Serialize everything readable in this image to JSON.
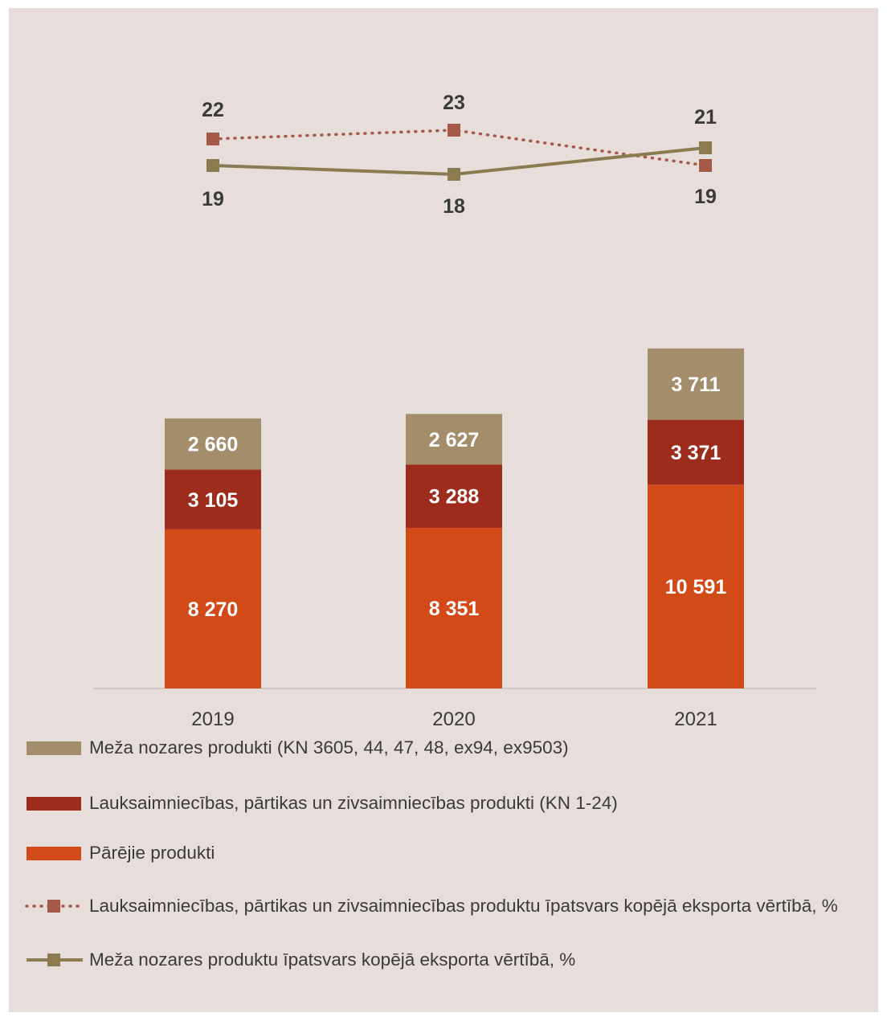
{
  "chart_data": {
    "type": "bar",
    "stacked": true,
    "categories": [
      "2019",
      "2020",
      "2021"
    ],
    "series": [
      {
        "name": "Pārējie produkti",
        "values": [
          8270,
          8351,
          10591
        ],
        "labels": [
          "8 270",
          "8 351",
          "10 591"
        ],
        "color": "#d14a18"
      },
      {
        "name": "Lauksaimniecības, pārtikas un zivsaimniecības produkti (KN 1-24)",
        "values": [
          3105,
          3288,
          3371
        ],
        "labels": [
          "3 105",
          "3 288",
          "3 371"
        ],
        "color": "#9e2c1d"
      },
      {
        "name": "Meža nozares produkti (KN 3605, 44, 47, 48, ex94, ex9503)",
        "values": [
          2660,
          2627,
          3711
        ],
        "labels": [
          "2 660",
          "2 627",
          "3 711"
        ],
        "color": "#a48d6a"
      }
    ],
    "line_series": [
      {
        "name": "Lauksaimniecības, pārtikas un zivsaimniecības produktu īpatsvars kopējā eksporta vērtībā, %",
        "values": [
          22,
          23,
          19
        ],
        "labels": [
          "22",
          "23",
          "19"
        ],
        "style": "dotted",
        "color": "#a55a47"
      },
      {
        "name": "Meža nozares produktu īpatsvars kopējā eksporta vērtībā, %",
        "values": [
          19,
          18,
          21
        ],
        "labels": [
          "19",
          "18",
          "21"
        ],
        "style": "solid",
        "color": "#8c7b51"
      }
    ],
    "legend_order": [
      {
        "name": "Meža nozares produkti (KN 3605, 44, 47, 48, ex94, ex9503)",
        "kind": "bar",
        "color": "#a48d6a"
      },
      {
        "name": "Lauksaimniecības, pārtikas un zivsaimniecības produkti (KN 1-24)",
        "kind": "bar",
        "color": "#9e2c1d"
      },
      {
        "name": "Pārējie produkti",
        "kind": "bar",
        "color": "#d14a18"
      },
      {
        "name": "Lauksaimniecības, pārtikas un zivsaimniecības produktu īpatsvars kopējā eksporta vērtībā, %",
        "kind": "line-dotted",
        "color": "#a55a47"
      },
      {
        "name": "Meža nozares produktu īpatsvars kopējā eksporta vērtībā, %",
        "kind": "line-solid",
        "color": "#8c7b51"
      }
    ],
    "legend_position": "bottom",
    "grid": false,
    "title": "",
    "xlabel": "",
    "ylabel": ""
  }
}
